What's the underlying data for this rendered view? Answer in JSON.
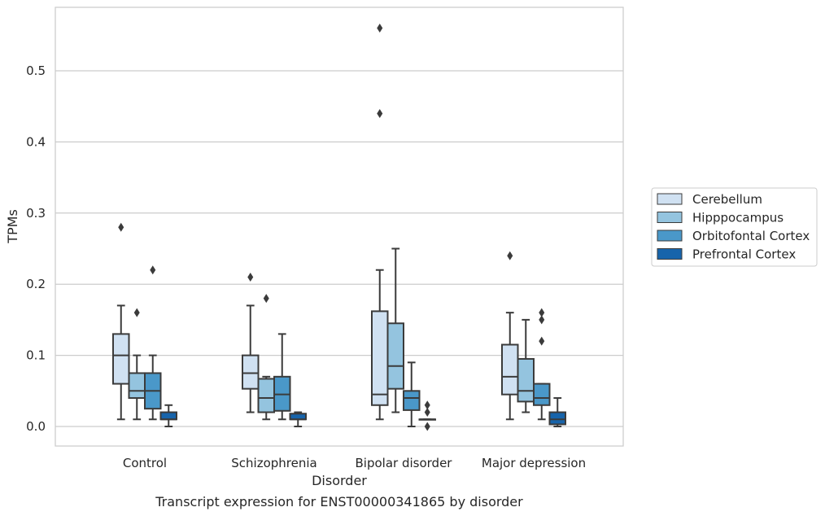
{
  "caption": "Transcript expression for ENST00000341865 by disorder",
  "chart_data": {
    "type": "boxplot",
    "title": "",
    "xlabel": "Disorder",
    "ylabel": "TPMs",
    "ylim": [
      -0.027,
      0.588
    ],
    "yticks": [
      0.0,
      0.1,
      0.2,
      0.3,
      0.4,
      0.5
    ],
    "ytick_labels": [
      "0.0",
      "0.1",
      "0.2",
      "0.3",
      "0.4",
      "0.5"
    ],
    "grid": "horizontal",
    "legend_position": "right",
    "categories": [
      "Control",
      "Schizophrenia",
      "Bipolar disorder",
      "Major depression"
    ],
    "series": [
      {
        "name": "Cerebellum",
        "color": "#d0e1f2",
        "boxes": [
          {
            "whislo": 0.01,
            "q1": 0.06,
            "med": 0.1,
            "q3": 0.13,
            "whishi": 0.17,
            "fliers": [
              0.28
            ]
          },
          {
            "whislo": 0.02,
            "q1": 0.053,
            "med": 0.075,
            "q3": 0.1,
            "whishi": 0.17,
            "fliers": [
              0.21
            ]
          },
          {
            "whislo": 0.01,
            "q1": 0.03,
            "med": 0.045,
            "q3": 0.162,
            "whishi": 0.22,
            "fliers": [
              0.44,
              0.56
            ]
          },
          {
            "whislo": 0.01,
            "q1": 0.045,
            "med": 0.07,
            "q3": 0.115,
            "whishi": 0.16,
            "fliers": [
              0.24
            ]
          }
        ]
      },
      {
        "name": "Hipppocampus",
        "color": "#94c4df",
        "boxes": [
          {
            "whislo": 0.01,
            "q1": 0.04,
            "med": 0.05,
            "q3": 0.075,
            "whishi": 0.1,
            "fliers": [
              0.16
            ]
          },
          {
            "whislo": 0.01,
            "q1": 0.02,
            "med": 0.04,
            "q3": 0.067,
            "whishi": 0.07,
            "fliers": [
              0.18
            ]
          },
          {
            "whislo": 0.02,
            "q1": 0.053,
            "med": 0.085,
            "q3": 0.145,
            "whishi": 0.25,
            "fliers": []
          },
          {
            "whislo": 0.02,
            "q1": 0.035,
            "med": 0.05,
            "q3": 0.095,
            "whishi": 0.15,
            "fliers": []
          }
        ]
      },
      {
        "name": "Orbitofontal Cortex",
        "color": "#4a98c9",
        "boxes": [
          {
            "whislo": 0.01,
            "q1": 0.025,
            "med": 0.05,
            "q3": 0.075,
            "whishi": 0.1,
            "fliers": [
              0.22
            ]
          },
          {
            "whislo": 0.01,
            "q1": 0.022,
            "med": 0.045,
            "q3": 0.07,
            "whishi": 0.13,
            "fliers": []
          },
          {
            "whislo": 0.0,
            "q1": 0.023,
            "med": 0.04,
            "q3": 0.05,
            "whishi": 0.09,
            "fliers": []
          },
          {
            "whislo": 0.01,
            "q1": 0.03,
            "med": 0.04,
            "q3": 0.06,
            "whishi": 0.06,
            "fliers": [
              0.12,
              0.15,
              0.16
            ]
          }
        ]
      },
      {
        "name": "Prefrontal Cortex",
        "color": "#1764ab",
        "boxes": [
          {
            "whislo": 0.0,
            "q1": 0.01,
            "med": 0.01,
            "q3": 0.02,
            "whishi": 0.03,
            "fliers": []
          },
          {
            "whislo": 0.0,
            "q1": 0.01,
            "med": 0.01,
            "q3": 0.018,
            "whishi": 0.02,
            "fliers": []
          },
          {
            "whislo": 0.01,
            "q1": 0.01,
            "med": 0.01,
            "q3": 0.01,
            "whishi": 0.01,
            "fliers": [
              0.0,
              0.02,
              0.03
            ]
          },
          {
            "whislo": 0.0,
            "q1": 0.003,
            "med": 0.01,
            "q3": 0.02,
            "whishi": 0.04,
            "fliers": []
          }
        ]
      }
    ]
  }
}
